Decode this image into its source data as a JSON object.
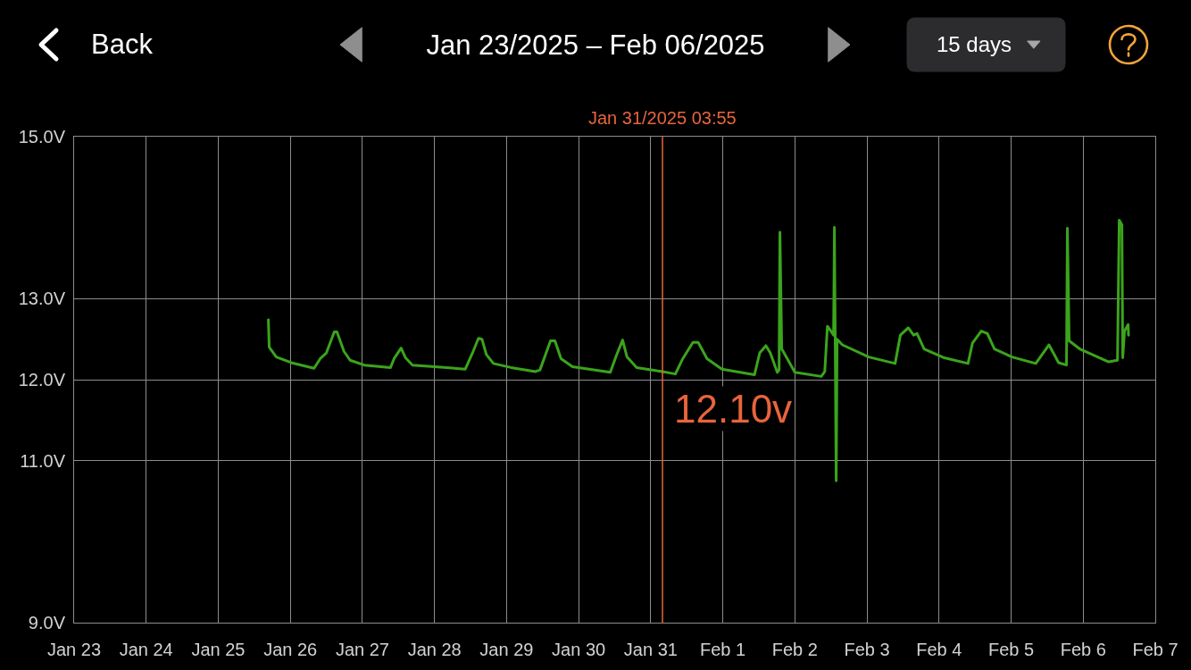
{
  "chart_data": {
    "type": "line",
    "title": "Jan 23/2025 – Feb 06/2025",
    "annotations": [
      "Back",
      "15 days",
      {
        "text": "12.10v",
        "x": "2025-01-31T03:55",
        "y": 12.1
      }
    ],
    "color": "#3ba41c",
    "x": [
      "2025-01-25T16:41",
      "2025-01-25T16:58",
      "2025-01-25T19:19",
      "2025-01-26T00:18",
      "2025-01-26T07:54",
      "2025-01-26T09:57",
      "2025-01-26T12:00",
      "2025-01-26T14:38",
      "2025-01-26T15:31",
      "2025-01-26T17:51",
      "2025-01-26T19:54",
      "2025-01-27T00:35",
      "2025-01-27T09:22",
      "2025-01-27T10:32",
      "2025-01-27T12:53",
      "2025-01-27T14:21",
      "2025-01-27T16:41",
      "2025-01-28T00:00",
      "2025-01-28T10:15",
      "2025-01-28T12:53",
      "2025-01-28T14:38",
      "2025-01-28T15:48",
      "2025-01-28T17:16",
      "2025-01-28T19:37",
      "2025-01-29T01:28",
      "2025-01-29T09:39",
      "2025-01-29T11:07",
      "2025-01-29T12:53",
      "2025-01-29T14:38",
      "2025-01-29T16:06",
      "2025-01-29T18:08",
      "2025-01-29T21:57",
      "2025-01-30T10:32",
      "2025-01-30T12:35",
      "2025-01-30T14:38",
      "2025-01-30T16:06",
      "2025-01-30T19:19",
      "2025-01-31T03:55",
      "2025-01-31T08:12",
      "2025-01-31T10:32",
      "2025-01-31T14:03",
      "2025-01-31T15:48",
      "2025-01-31T18:44",
      "2025-01-31T23:42",
      "2025-02-01T10:32",
      "2025-02-01T12:17",
      "2025-02-01T14:21",
      "2025-02-01T15:48",
      "2025-02-01T18:08",
      "2025-02-01T18:44",
      "2025-02-01T19:01",
      "2025-02-01T19:37",
      "2025-02-02T00:00",
      "2025-02-02T08:47",
      "2025-02-02T09:57",
      "2025-02-02T10:50",
      "2025-02-02T12:00",
      "2025-02-02T12:53",
      "2025-02-02T13:10",
      "2025-02-02T13:45",
      "2025-02-02T14:03",
      "2025-02-02T15:48",
      "2025-02-03T00:35",
      "2025-02-03T09:22",
      "2025-02-03T11:07",
      "2025-02-03T13:45",
      "2025-02-03T15:31",
      "2025-02-03T16:41",
      "2025-02-03T19:01",
      "2025-02-04T01:45",
      "2025-02-04T09:39",
      "2025-02-04T11:07",
      "2025-02-04T14:03",
      "2025-02-04T16:06",
      "2025-02-04T18:26",
      "2025-02-05T00:18",
      "2025-02-05T08:12",
      "2025-02-05T12:35",
      "2025-02-05T14:03",
      "2025-02-05T15:48",
      "2025-02-05T18:26",
      "2025-02-05T18:44",
      "2025-02-05T19:19",
      "2025-02-05T22:50",
      "2025-02-06T08:29",
      "2025-02-06T11:25",
      "2025-02-06T12:00",
      "2025-02-06T12:53",
      "2025-02-06T13:10",
      "2025-02-06T13:45",
      "2025-02-06T14:56",
      "2025-02-06T15:05"
    ],
    "values": [
      12.74,
      12.4,
      12.28,
      12.21,
      12.14,
      12.26,
      12.33,
      12.59,
      12.59,
      12.35,
      12.24,
      12.18,
      12.15,
      12.26,
      12.39,
      12.27,
      12.18,
      12.16,
      12.13,
      12.35,
      12.51,
      12.5,
      12.31,
      12.2,
      12.15,
      12.1,
      12.12,
      12.3,
      12.48,
      12.48,
      12.26,
      12.16,
      12.09,
      12.3,
      12.49,
      12.28,
      12.15,
      12.1,
      12.07,
      12.25,
      12.46,
      12.46,
      12.26,
      12.13,
      12.06,
      12.33,
      12.42,
      12.33,
      12.09,
      12.12,
      13.82,
      12.38,
      12.09,
      12.04,
      12.1,
      12.66,
      12.6,
      12.55,
      13.88,
      10.75,
      12.5,
      12.43,
      12.28,
      12.2,
      12.55,
      12.64,
      12.55,
      12.57,
      12.38,
      12.27,
      12.2,
      12.45,
      12.6,
      12.57,
      12.38,
      12.28,
      12.2,
      12.43,
      12.33,
      12.21,
      12.18,
      13.87,
      12.48,
      12.38,
      12.22,
      12.24,
      13.97,
      13.91,
      12.27,
      12.6,
      12.68,
      12.55
    ],
    "xlim": [
      "2025-01-23",
      "2025-02-07"
    ],
    "xticks": [
      {
        "value": "2025-01-23",
        "label": "Jan 23"
      },
      {
        "value": "2025-01-24",
        "label": "Jan 24"
      },
      {
        "value": "2025-01-25",
        "label": "Jan 25"
      },
      {
        "value": "2025-01-26",
        "label": "Jan 26"
      },
      {
        "value": "2025-01-27",
        "label": "Jan 27"
      },
      {
        "value": "2025-01-28",
        "label": "Jan 28"
      },
      {
        "value": "2025-01-29",
        "label": "Jan 29"
      },
      {
        "value": "2025-01-30",
        "label": "Jan 30"
      },
      {
        "value": "2025-01-31",
        "label": "Jan 31"
      },
      {
        "value": "2025-02-01",
        "label": "Feb 1"
      },
      {
        "value": "2025-02-02",
        "label": "Feb 2"
      },
      {
        "value": "2025-02-03",
        "label": "Feb 3"
      },
      {
        "value": "2025-02-04",
        "label": "Feb 4"
      },
      {
        "value": "2025-02-05",
        "label": "Feb 5"
      },
      {
        "value": "2025-02-06",
        "label": "Feb 6"
      },
      {
        "value": "2025-02-07",
        "label": "Feb 7"
      }
    ],
    "ylim": [
      9,
      15
    ],
    "yticks": [
      {
        "value": 9,
        "label": "9.0V"
      },
      {
        "value": 11,
        "label": "11.0V"
      },
      {
        "value": 12,
        "label": "12.0V"
      },
      {
        "value": 13,
        "label": "13.0V"
      },
      {
        "value": 15,
        "label": "15.0V"
      }
    ],
    "ref_lines": [
      {
        "axis": "x",
        "value": "2025-01-31T03:55",
        "label": "Jan 31/2025 03:55",
        "color": "#e8643c"
      }
    ],
    "grid": true
  }
}
